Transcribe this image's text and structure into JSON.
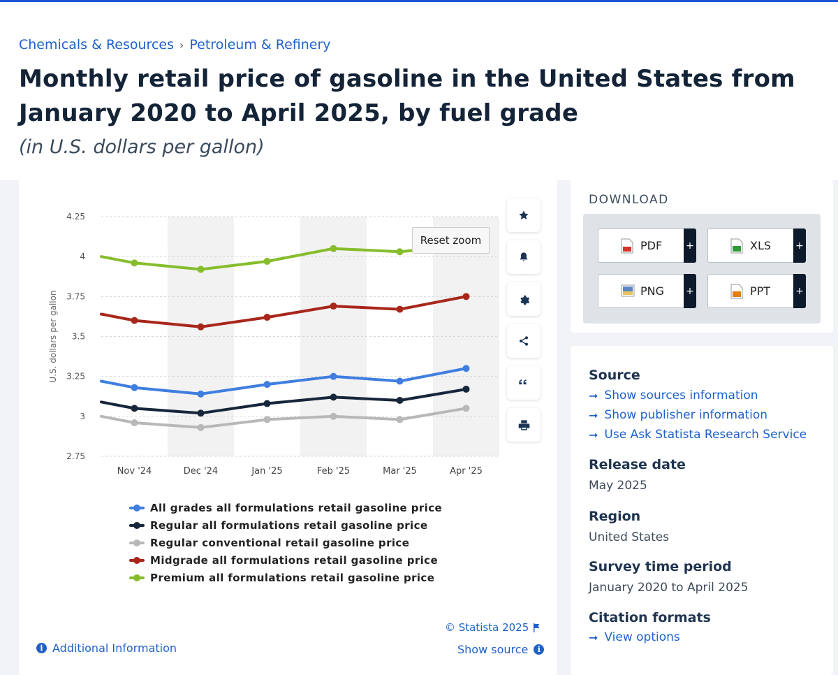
{
  "breadcrumb": {
    "items": [
      "Chemicals & Resources",
      "Petroleum & Refinery"
    ],
    "separator": "›"
  },
  "title": "Monthly retail price of gasoline in the United States from January 2020 to April 2025, by fuel grade",
  "subtitle": "(in U.S. dollars per gallon)",
  "chart": {
    "reset_zoom_label": "Reset zoom",
    "tools": [
      "star-icon",
      "bell-icon",
      "gear-icon",
      "share-icon",
      "quote-icon",
      "print-icon"
    ],
    "credit": "© Statista 2025",
    "additional_info": "Additional Information",
    "show_source": "Show source"
  },
  "chart_data": {
    "type": "line",
    "title": "",
    "xlabel": "",
    "ylabel": "U.S. dollars per gallon",
    "categories": [
      "Nov '24",
      "Dec '24",
      "Jan '25",
      "Feb '25",
      "Mar '25",
      "Apr '25"
    ],
    "ylim": [
      2.75,
      4.25
    ],
    "yticks": [
      "4.25",
      "4",
      "3.75",
      "3.5",
      "3.25",
      "3",
      "2.75"
    ],
    "edge_values": {
      "left": {
        "All grades all formulations retail gasoline price": 3.22,
        "Regular all formulations retail gasoline price": 3.09,
        "Regular conventional retail gasoline price": 3.0,
        "Midgrade all formulations retail gasoline price": 3.64,
        "Premium all formulations retail gasoline price": 4.0
      }
    },
    "grid": "alternating vertical bands",
    "legend_position": "bottom",
    "series": [
      {
        "name": "All grades all formulations retail gasoline price",
        "color": "#3f7ee0",
        "values": [
          3.18,
          3.14,
          3.2,
          3.25,
          3.22,
          3.3
        ]
      },
      {
        "name": "Regular all formulations retail gasoline price",
        "color": "#17263a",
        "values": [
          3.05,
          3.02,
          3.08,
          3.12,
          3.1,
          3.17
        ]
      },
      {
        "name": "Regular conventional retail gasoline price",
        "color": "#b8b8b8",
        "values": [
          2.96,
          2.93,
          2.98,
          3.0,
          2.98,
          3.05
        ]
      },
      {
        "name": "Midgrade all formulations retail gasoline price",
        "color": "#a8271a",
        "values": [
          3.6,
          3.56,
          3.62,
          3.69,
          3.67,
          3.75
        ]
      },
      {
        "name": "Premium all formulations retail gasoline price",
        "color": "#86bd2c",
        "values": [
          3.96,
          3.92,
          3.97,
          4.05,
          4.03,
          4.07
        ]
      }
    ]
  },
  "download": {
    "title": "DOWNLOAD",
    "buttons": [
      {
        "label": "PDF",
        "icon": "pdf-icon",
        "color": "#d9302a"
      },
      {
        "label": "XLS",
        "icon": "xls-icon",
        "color": "#2f9a3a"
      },
      {
        "label": "PNG",
        "icon": "png-icon",
        "color": "#5a86c6"
      },
      {
        "label": "PPT",
        "icon": "ppt-icon",
        "color": "#e07b1f"
      }
    ],
    "plus": "+"
  },
  "source_panel": {
    "source_heading": "Source",
    "links": [
      "Show sources information",
      "Show publisher information",
      "Use Ask Statista Research Service"
    ],
    "release_heading": "Release date",
    "release_value": "May 2025",
    "region_heading": "Region",
    "region_value": "United States",
    "survey_heading": "Survey time period",
    "survey_value": "January 2020 to April 2025",
    "citation_heading": "Citation formats",
    "citation_link": "View options"
  }
}
